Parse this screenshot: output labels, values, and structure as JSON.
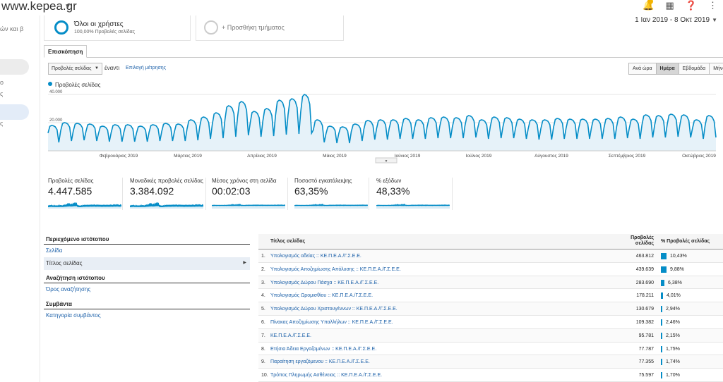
{
  "header": {
    "site": "www.kepea.gr",
    "icons": [
      "bell-icon",
      "apps-grid-icon",
      "help-icon",
      "more-vert-icon"
    ],
    "accent": "#058dc7"
  },
  "sidebar": {
    "fragments": [
      "ών και β",
      "ο",
      "ς",
      "ς"
    ]
  },
  "segments": {
    "all_users": {
      "name": "Όλοι οι χρήστες",
      "sub": "100,00% Προβολές σελίδας"
    },
    "add_segment": "+ Προσθήκη τμήματος"
  },
  "date_range": "1 Ιαν 2019 - 8 Οκτ 2019",
  "tabs": {
    "overview": "Επισκόπηση"
  },
  "controls": {
    "metric": "Προβολές σελίδας",
    "vs": "έναντι",
    "choose_metric": "Επιλογή μέτρησης",
    "periods": [
      {
        "label": "Ανά ώρα",
        "active": false
      },
      {
        "label": "Ημέρα",
        "active": true
      },
      {
        "label": "Εβδομάδα",
        "active": false
      },
      {
        "label": "Μήνας",
        "active": false
      }
    ]
  },
  "chart_data": {
    "type": "area",
    "series": [
      {
        "name": "Προβολές σελίδας",
        "color": "#058dc7"
      }
    ],
    "y_ticks": [
      "40.000",
      "20.000"
    ],
    "ylim": [
      0,
      40000
    ],
    "x_labels": [
      "Φεβρουάριος 2019",
      "Μάρτιος 2019",
      "Απρίλιος 2019",
      "Μάιος 2019",
      "Ιούνιος 2019",
      "Ιούλιος 2019",
      "Αύγουστος 2019",
      "Σεπτέμβριος 2019",
      "Οκτώβριος 2019"
    ],
    "weekly_peaks": [
      18000,
      20000,
      19500,
      19000,
      17500,
      18500,
      18500,
      17500,
      18500,
      19500,
      19000,
      22000,
      24000,
      27000,
      32000,
      35000,
      28000,
      30000,
      36000,
      37000,
      40000,
      22000,
      17500,
      17000,
      19000,
      21500,
      22000,
      22000,
      23000,
      22000,
      23500,
      24000,
      23500,
      25000,
      22000,
      24000,
      23500,
      22500,
      22000,
      22000,
      23000,
      22500,
      22500,
      22500,
      23000,
      24000,
      22500,
      25500,
      25000,
      26000,
      25500,
      22000,
      25000
    ],
    "weekly_lows": [
      6000,
      7000,
      7500,
      7000,
      6500,
      6500,
      6500,
      6500,
      7000,
      7000,
      7000,
      7500,
      8500,
      9000,
      10000,
      11000,
      10000,
      10500,
      11500,
      12000,
      12500,
      6000,
      5500,
      5500,
      7000,
      8000,
      8000,
      8500,
      8500,
      8500,
      9000,
      9000,
      9000,
      9500,
      8500,
      9000,
      9000,
      8500,
      8000,
      8000,
      8500,
      8500,
      8500,
      8500,
      8500,
      9000,
      8500,
      9500,
      9500,
      10000,
      9500,
      8500,
      9500
    ]
  },
  "kpis": [
    {
      "label": "Προβολές σελίδας",
      "value": "4.447.585"
    },
    {
      "label": "Μοναδικές προβολές σελίδας",
      "value": "3.384.092"
    },
    {
      "label": "Μέσος χρόνος στη σελίδα",
      "value": "00:02:03"
    },
    {
      "label": "Ποσοστό εγκατάλειψης",
      "value": "63,35%"
    },
    {
      "label": "% εξόδων",
      "value": "48,33%"
    }
  ],
  "dimensions": {
    "groups": [
      {
        "heading": "Περιεχόμενο ιστότοπου",
        "items": [
          {
            "label": "Σελίδα",
            "selected": false
          },
          {
            "label": "Τίτλος σελίδας",
            "selected": true
          }
        ]
      },
      {
        "heading": "Αναζήτηση ιστότοπου",
        "items": [
          {
            "label": "Όρος αναζήτησης",
            "selected": false
          }
        ]
      },
      {
        "heading": "Συμβάντα",
        "items": [
          {
            "label": "Κατηγορία συμβάντος",
            "selected": false
          }
        ]
      }
    ]
  },
  "table": {
    "col_title": "Τίτλος σελίδας",
    "col_views_1": "Προβολές",
    "col_views_2": "σελίδας",
    "col_pct": "% Προβολές σελίδας",
    "rows": [
      {
        "idx": "1.",
        "title": "Υπολογισμός αδείας :: ΚΕ.Π.Ε.Α./Γ.Σ.Ε.Ε.",
        "views": "463.812",
        "pct": "10,43%",
        "share": 10.43
      },
      {
        "idx": "2.",
        "title": "Υπολογισμός Αποζημίωσης Απόλυσης :: ΚΕ.Π.Ε.Α./Γ.Σ.Ε.Ε.",
        "views": "439.639",
        "pct": "9,88%",
        "share": 9.88
      },
      {
        "idx": "3.",
        "title": "Υπολογισμός Δώρου Πάσχα :: ΚΕ.Π.Ε.Α./Γ.Σ.Ε.Ε.",
        "views": "283.690",
        "pct": "6,38%",
        "share": 6.38
      },
      {
        "idx": "4.",
        "title": "Υπολογισμός Ωρομισθίου :: ΚΕ.Π.Ε.Α./Γ.Σ.Ε.Ε.",
        "views": "178.211",
        "pct": "4,01%",
        "share": 4.01
      },
      {
        "idx": "5.",
        "title": "Υπολογισμός Δώρου Χριστουγέννων :: ΚΕ.Π.Ε.Α./Γ.Σ.Ε.Ε.",
        "views": "130.679",
        "pct": "2,94%",
        "share": 2.94
      },
      {
        "idx": "6.",
        "title": "Πίνακας Αποζημίωσης Υπαλλήλων :: ΚΕ.Π.Ε.Α./Γ.Σ.Ε.Ε.",
        "views": "109.382",
        "pct": "2,46%",
        "share": 2.46
      },
      {
        "idx": "7.",
        "title": "ΚΕ.Π.Ε.Α./Γ.Σ.Ε.Ε.",
        "views": "95.781",
        "pct": "2,15%",
        "share": 2.15
      },
      {
        "idx": "8.",
        "title": "Ετήσια Άδεια Εργαζομένων :: ΚΕ.Π.Ε.Α./Γ.Σ.Ε.Ε.",
        "views": "77.787",
        "pct": "1,75%",
        "share": 1.75
      },
      {
        "idx": "9.",
        "title": "Παραίτηση εργαζόμενου :: ΚΕ.Π.Ε.Α./Γ.Σ.Ε.Ε.",
        "views": "77.355",
        "pct": "1,74%",
        "share": 1.74
      },
      {
        "idx": "10.",
        "title": "Τρόπος Πληρωμής Ασθένειας :: ΚΕ.Π.Ε.Α./Γ.Σ.Ε.Ε.",
        "views": "75.597",
        "pct": "1,70%",
        "share": 1.7
      }
    ]
  }
}
